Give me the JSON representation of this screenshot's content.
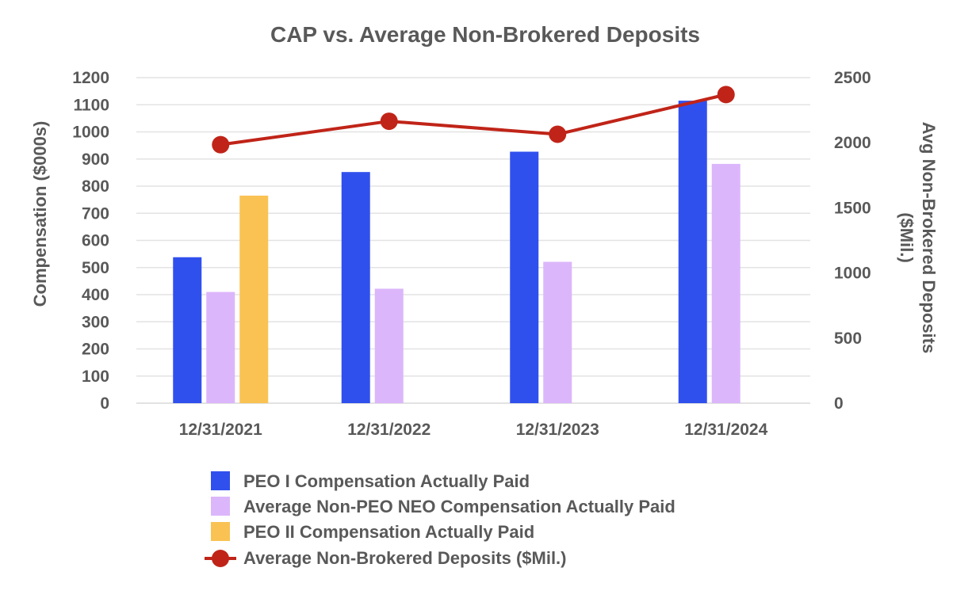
{
  "chart_data": {
    "type": "bar",
    "title": "CAP vs. Average Non-Brokered Deposits",
    "categories": [
      "12/31/2021",
      "12/31/2022",
      "12/31/2023",
      "12/31/2024"
    ],
    "ylabel": "Compensation ($000s)",
    "y2label_lines": [
      "Avg Non-Brokered Deposits",
      "($Mil.)"
    ],
    "ylim": [
      0,
      1200
    ],
    "y_ticks": [
      0,
      100,
      200,
      300,
      400,
      500,
      600,
      700,
      800,
      900,
      1000,
      1100,
      1200
    ],
    "y2lim": [
      0,
      2500
    ],
    "y2_ticks": [
      0,
      500,
      1000,
      1500,
      2000,
      2500
    ],
    "grid": true,
    "series": [
      {
        "name": "PEO I Compensation Actually Paid",
        "kind": "bar",
        "axis": "left",
        "color": "#3050ee",
        "values": [
          538,
          852,
          927,
          1115
        ]
      },
      {
        "name": "Average Non-PEO NEO Compensation Actually Paid",
        "kind": "bar",
        "axis": "left",
        "color": "#dcb6fb",
        "values": [
          410,
          422,
          521,
          882
        ]
      },
      {
        "name": "PEO II Compensation Actually Paid",
        "kind": "bar",
        "axis": "left",
        "color": "#f9c253",
        "values": [
          765,
          null,
          null,
          null
        ]
      },
      {
        "name": "Average Non-Brokered Deposits ($Mil.)",
        "kind": "line",
        "axis": "right",
        "color": "#c02418",
        "values": [
          1985,
          2165,
          2065,
          2370
        ]
      }
    ],
    "legend_position": "bottom-center"
  }
}
